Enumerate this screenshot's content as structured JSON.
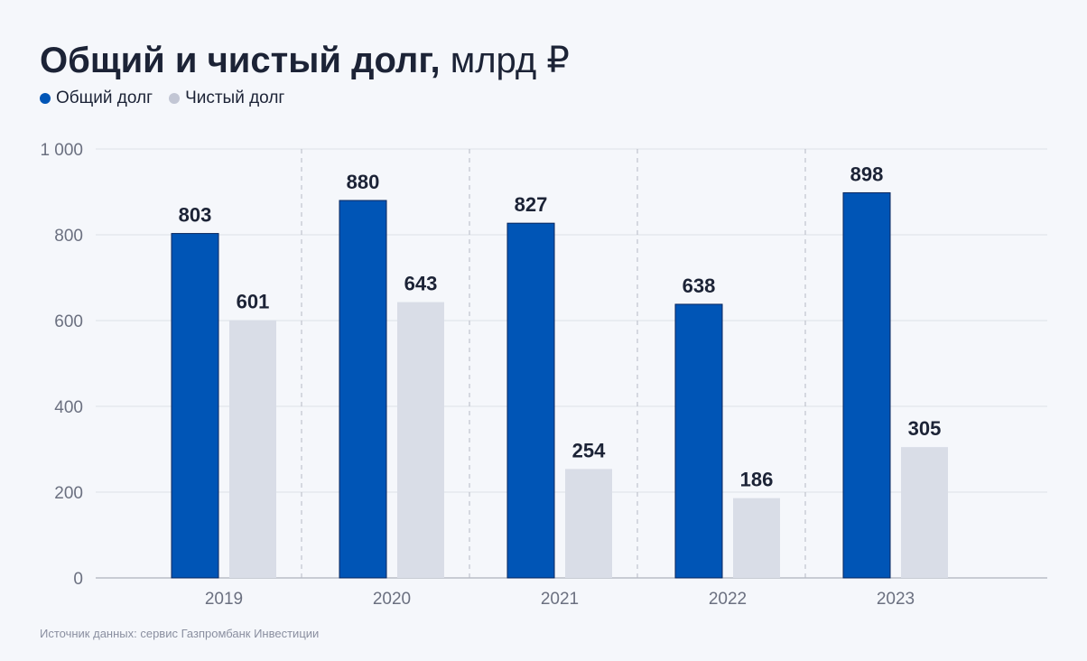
{
  "title": {
    "main": "Общий и чистый долг,",
    "unit": " млрд ₽"
  },
  "legend": [
    {
      "label": "Общий долг",
      "color": "#0055b6"
    },
    {
      "label": "Чистый долг",
      "color": "#c2c6d4"
    }
  ],
  "source": "Источник данных: сервис Газпромбанк Инвестиции",
  "chart_data": {
    "type": "bar",
    "categories": [
      "2019",
      "2020",
      "2021",
      "2022",
      "2023"
    ],
    "series": [
      {
        "name": "Общий долг",
        "values": [
          803,
          880,
          827,
          638,
          898
        ],
        "color": "#0055b6"
      },
      {
        "name": "Чистый долг",
        "values": [
          601,
          643,
          254,
          186,
          305
        ],
        "color": "#d9dde7"
      }
    ],
    "ylim": [
      0,
      1000
    ],
    "yticks": [
      0,
      200,
      400,
      600,
      800,
      1000
    ],
    "ytick_labels": [
      "0",
      "200",
      "400",
      "600",
      "800",
      "1 000"
    ],
    "grid": true,
    "legend_position": "top-left"
  }
}
